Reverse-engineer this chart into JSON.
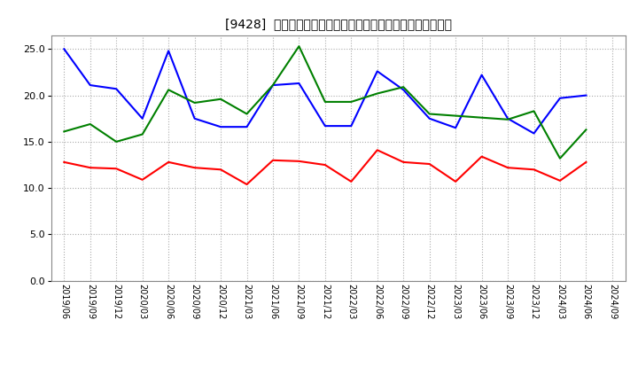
{
  "title": "[9428]  売上債権回転率、買入債務回転率、在庫回転率の推移",
  "dates": [
    "2019/06",
    "2019/09",
    "2019/12",
    "2020/03",
    "2020/06",
    "2020/09",
    "2020/12",
    "2021/03",
    "2021/06",
    "2021/09",
    "2021/12",
    "2022/03",
    "2022/06",
    "2022/09",
    "2022/12",
    "2023/03",
    "2023/06",
    "2023/09",
    "2023/12",
    "2024/03",
    "2024/06",
    "2024/09"
  ],
  "receivables_turnover": [
    12.8,
    12.2,
    12.1,
    10.9,
    12.8,
    12.2,
    12.0,
    10.4,
    13.0,
    12.9,
    12.5,
    10.7,
    14.1,
    12.8,
    12.6,
    10.7,
    13.4,
    12.2,
    12.0,
    10.8,
    12.8,
    null
  ],
  "payables_turnover": [
    25.0,
    21.1,
    20.7,
    17.5,
    24.8,
    17.5,
    16.6,
    16.6,
    21.1,
    21.3,
    16.7,
    16.7,
    22.6,
    20.6,
    17.5,
    16.5,
    22.2,
    17.5,
    15.9,
    19.7,
    20.0,
    null
  ],
  "inventory_turnover": [
    16.1,
    16.9,
    15.0,
    15.8,
    20.6,
    19.2,
    19.6,
    18.0,
    21.1,
    25.3,
    19.3,
    19.3,
    20.2,
    20.9,
    18.0,
    17.8,
    17.6,
    17.4,
    18.3,
    13.2,
    16.3,
    null
  ],
  "colors": {
    "receivables": "#ff0000",
    "payables": "#0000ff",
    "inventory": "#008000"
  },
  "ylim": [
    0,
    26.5
  ],
  "yticks": [
    0.0,
    5.0,
    10.0,
    15.0,
    20.0,
    25.0
  ],
  "legend_labels": [
    "売上債権回転率",
    "買入債務回転率",
    "在庫回転率"
  ],
  "background_color": "#ffffff",
  "grid_color": "#aaaaaa"
}
